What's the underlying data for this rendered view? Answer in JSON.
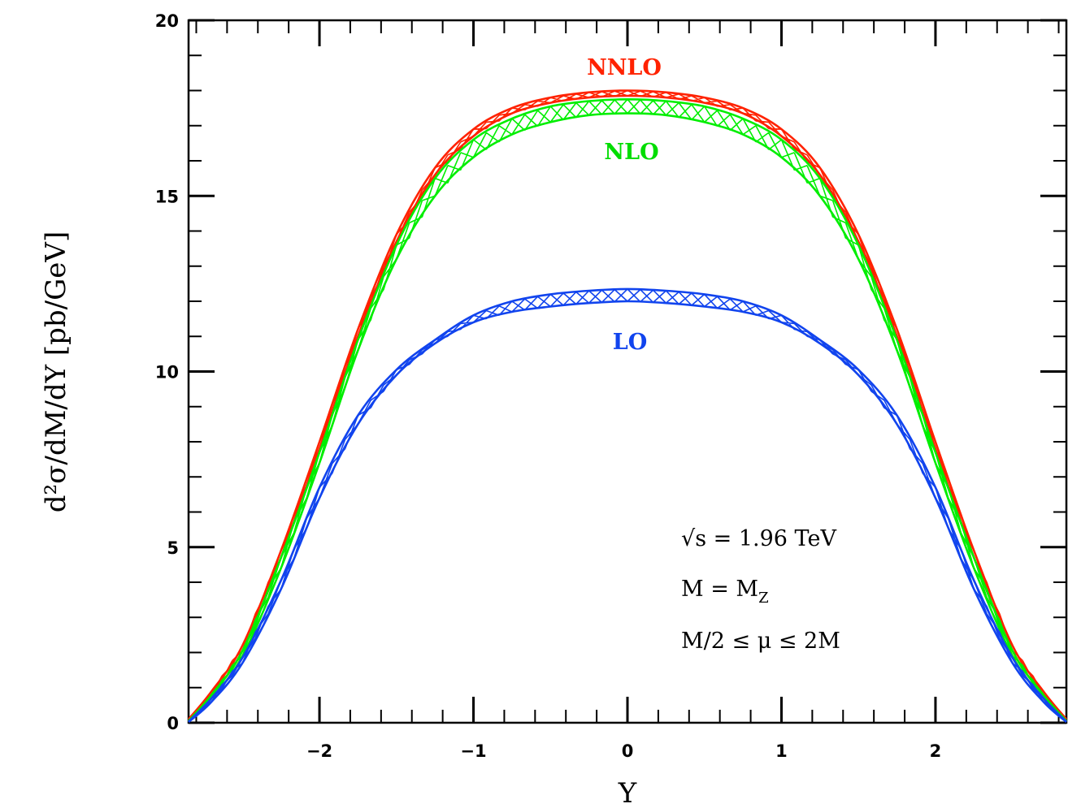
{
  "chart_data": {
    "type": "line",
    "title": "",
    "xlabel": "Y",
    "ylabel": "d²σ/dM/dY [pb/GeV]",
    "xlim": [
      -2.85,
      2.85
    ],
    "ylim": [
      0,
      20
    ],
    "xticks": [
      -2,
      -1,
      0,
      1,
      2
    ],
    "xtick_labels": [
      "−2",
      "−1",
      "0",
      "1",
      "2"
    ],
    "yticks": [
      0,
      5,
      10,
      15,
      20
    ],
    "ytick_labels": [
      "0",
      "5",
      "10",
      "15",
      "20"
    ],
    "grid": false,
    "x": [
      -2.85,
      -2.7,
      -2.5,
      -2.25,
      -2.0,
      -1.75,
      -1.5,
      -1.25,
      -1.0,
      -0.75,
      -0.5,
      -0.25,
      0.0,
      0.25,
      0.5,
      0.75,
      1.0,
      1.25,
      1.5,
      1.75,
      2.0,
      2.25,
      2.5,
      2.7,
      2.85
    ],
    "series": [
      {
        "name": "NNLO",
        "color": "#ff2200",
        "upper": [
          0.1,
          0.9,
          2.2,
          4.9,
          8.0,
          11.2,
          13.9,
          15.8,
          16.9,
          17.5,
          17.8,
          17.95,
          18.0,
          17.95,
          17.8,
          17.5,
          16.9,
          15.8,
          13.9,
          11.2,
          8.0,
          4.9,
          2.2,
          0.9,
          0.1
        ],
        "lower": [
          0.05,
          0.8,
          2.05,
          4.7,
          7.8,
          11.0,
          13.7,
          15.6,
          16.7,
          17.35,
          17.65,
          17.8,
          17.85,
          17.8,
          17.65,
          17.35,
          16.7,
          15.6,
          13.7,
          11.0,
          7.8,
          4.7,
          2.05,
          0.8,
          0.05
        ]
      },
      {
        "name": "NLO",
        "color": "#00ee00",
        "upper": [
          0.05,
          0.8,
          2.05,
          4.7,
          7.7,
          10.9,
          13.6,
          15.5,
          16.6,
          17.2,
          17.55,
          17.7,
          17.75,
          17.7,
          17.55,
          17.2,
          16.6,
          15.5,
          13.6,
          10.9,
          7.7,
          4.7,
          2.05,
          0.8,
          0.05
        ],
        "lower": [
          0.03,
          0.7,
          1.9,
          4.4,
          7.4,
          10.6,
          13.2,
          15.0,
          16.1,
          16.75,
          17.1,
          17.3,
          17.35,
          17.3,
          17.1,
          16.75,
          16.1,
          15.0,
          13.2,
          10.6,
          7.4,
          4.4,
          1.9,
          0.7,
          0.03
        ]
      },
      {
        "name": "LO",
        "color": "#1144ee",
        "upper": [
          0.03,
          0.7,
          1.85,
          4.05,
          6.7,
          8.75,
          10.05,
          10.9,
          11.6,
          12.0,
          12.2,
          12.3,
          12.35,
          12.3,
          12.2,
          12.0,
          11.6,
          10.9,
          10.05,
          8.75,
          6.7,
          4.05,
          1.85,
          0.7,
          0.03
        ],
        "lower": [
          0.02,
          0.6,
          1.7,
          3.8,
          6.4,
          8.5,
          9.9,
          10.8,
          11.4,
          11.7,
          11.85,
          11.95,
          12.0,
          11.95,
          11.85,
          11.7,
          11.4,
          10.8,
          9.9,
          8.5,
          6.4,
          3.8,
          1.7,
          0.6,
          0.02
        ]
      }
    ],
    "annotations": {
      "sqrt_s_line": "√s = 1.96 TeV",
      "mass_line_main": "M = M",
      "mass_line_sub": "Z",
      "scale_line": "M/2 ≤ μ ≤ 2M"
    }
  }
}
